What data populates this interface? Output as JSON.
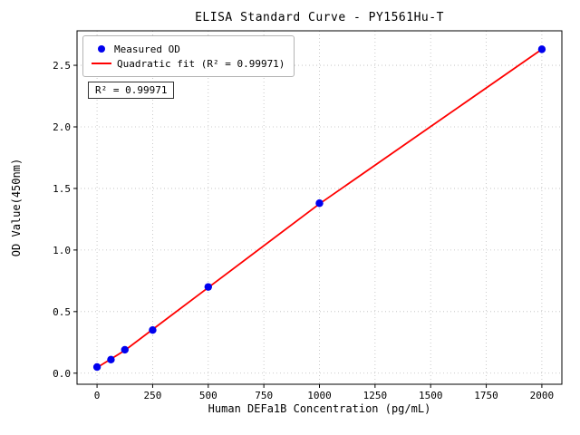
{
  "figure": {
    "title": "ELISA Standard Curve - PY1561Hu-T",
    "annotation": "R² = 0.99971"
  },
  "chart_data": {
    "type": "scatter",
    "title": "ELISA Standard Curve - PY1561Hu-T",
    "xlabel": "Human DEFa1B Concentration (pg/mL)",
    "ylabel": "OD Value(450nm)",
    "xlim": [
      -90,
      2090
    ],
    "ylim": [
      -0.09,
      2.78
    ],
    "xticks": [
      0,
      250,
      500,
      750,
      1000,
      1250,
      1500,
      1750,
      2000
    ],
    "xtick_labels": [
      "0",
      "250",
      "500",
      "750",
      "1000",
      "1250",
      "1500",
      "1750",
      "2000"
    ],
    "yticks": [
      0.0,
      0.5,
      1.0,
      1.5,
      2.0,
      2.5
    ],
    "ytick_labels": [
      "0.0",
      "0.5",
      "1.0",
      "1.5",
      "2.0",
      "2.5"
    ],
    "grid": true,
    "grid_style": "dotted",
    "legend_position": "upper-left",
    "annotation": "R² = 0.99971",
    "colors": {
      "scatter": "#0000ee",
      "fit_line": "#ff0000",
      "grid": "#bdbdbd",
      "frame": "#000000"
    },
    "series": [
      {
        "name": "Measured OD",
        "type": "scatter",
        "color": "#0000ee",
        "x": [
          0,
          62.5,
          125,
          250,
          500,
          1000,
          2000
        ],
        "y": [
          0.05,
          0.11,
          0.19,
          0.35,
          0.7,
          1.38,
          2.63
        ]
      },
      {
        "name": "Quadratic fit (R² = 0.99971)",
        "type": "line",
        "color": "#ff0000",
        "x": [
          0,
          62.5,
          125,
          250,
          500,
          1000,
          2000
        ],
        "y": [
          0.045,
          0.115,
          0.185,
          0.355,
          0.695,
          1.375,
          2.63
        ]
      }
    ]
  }
}
